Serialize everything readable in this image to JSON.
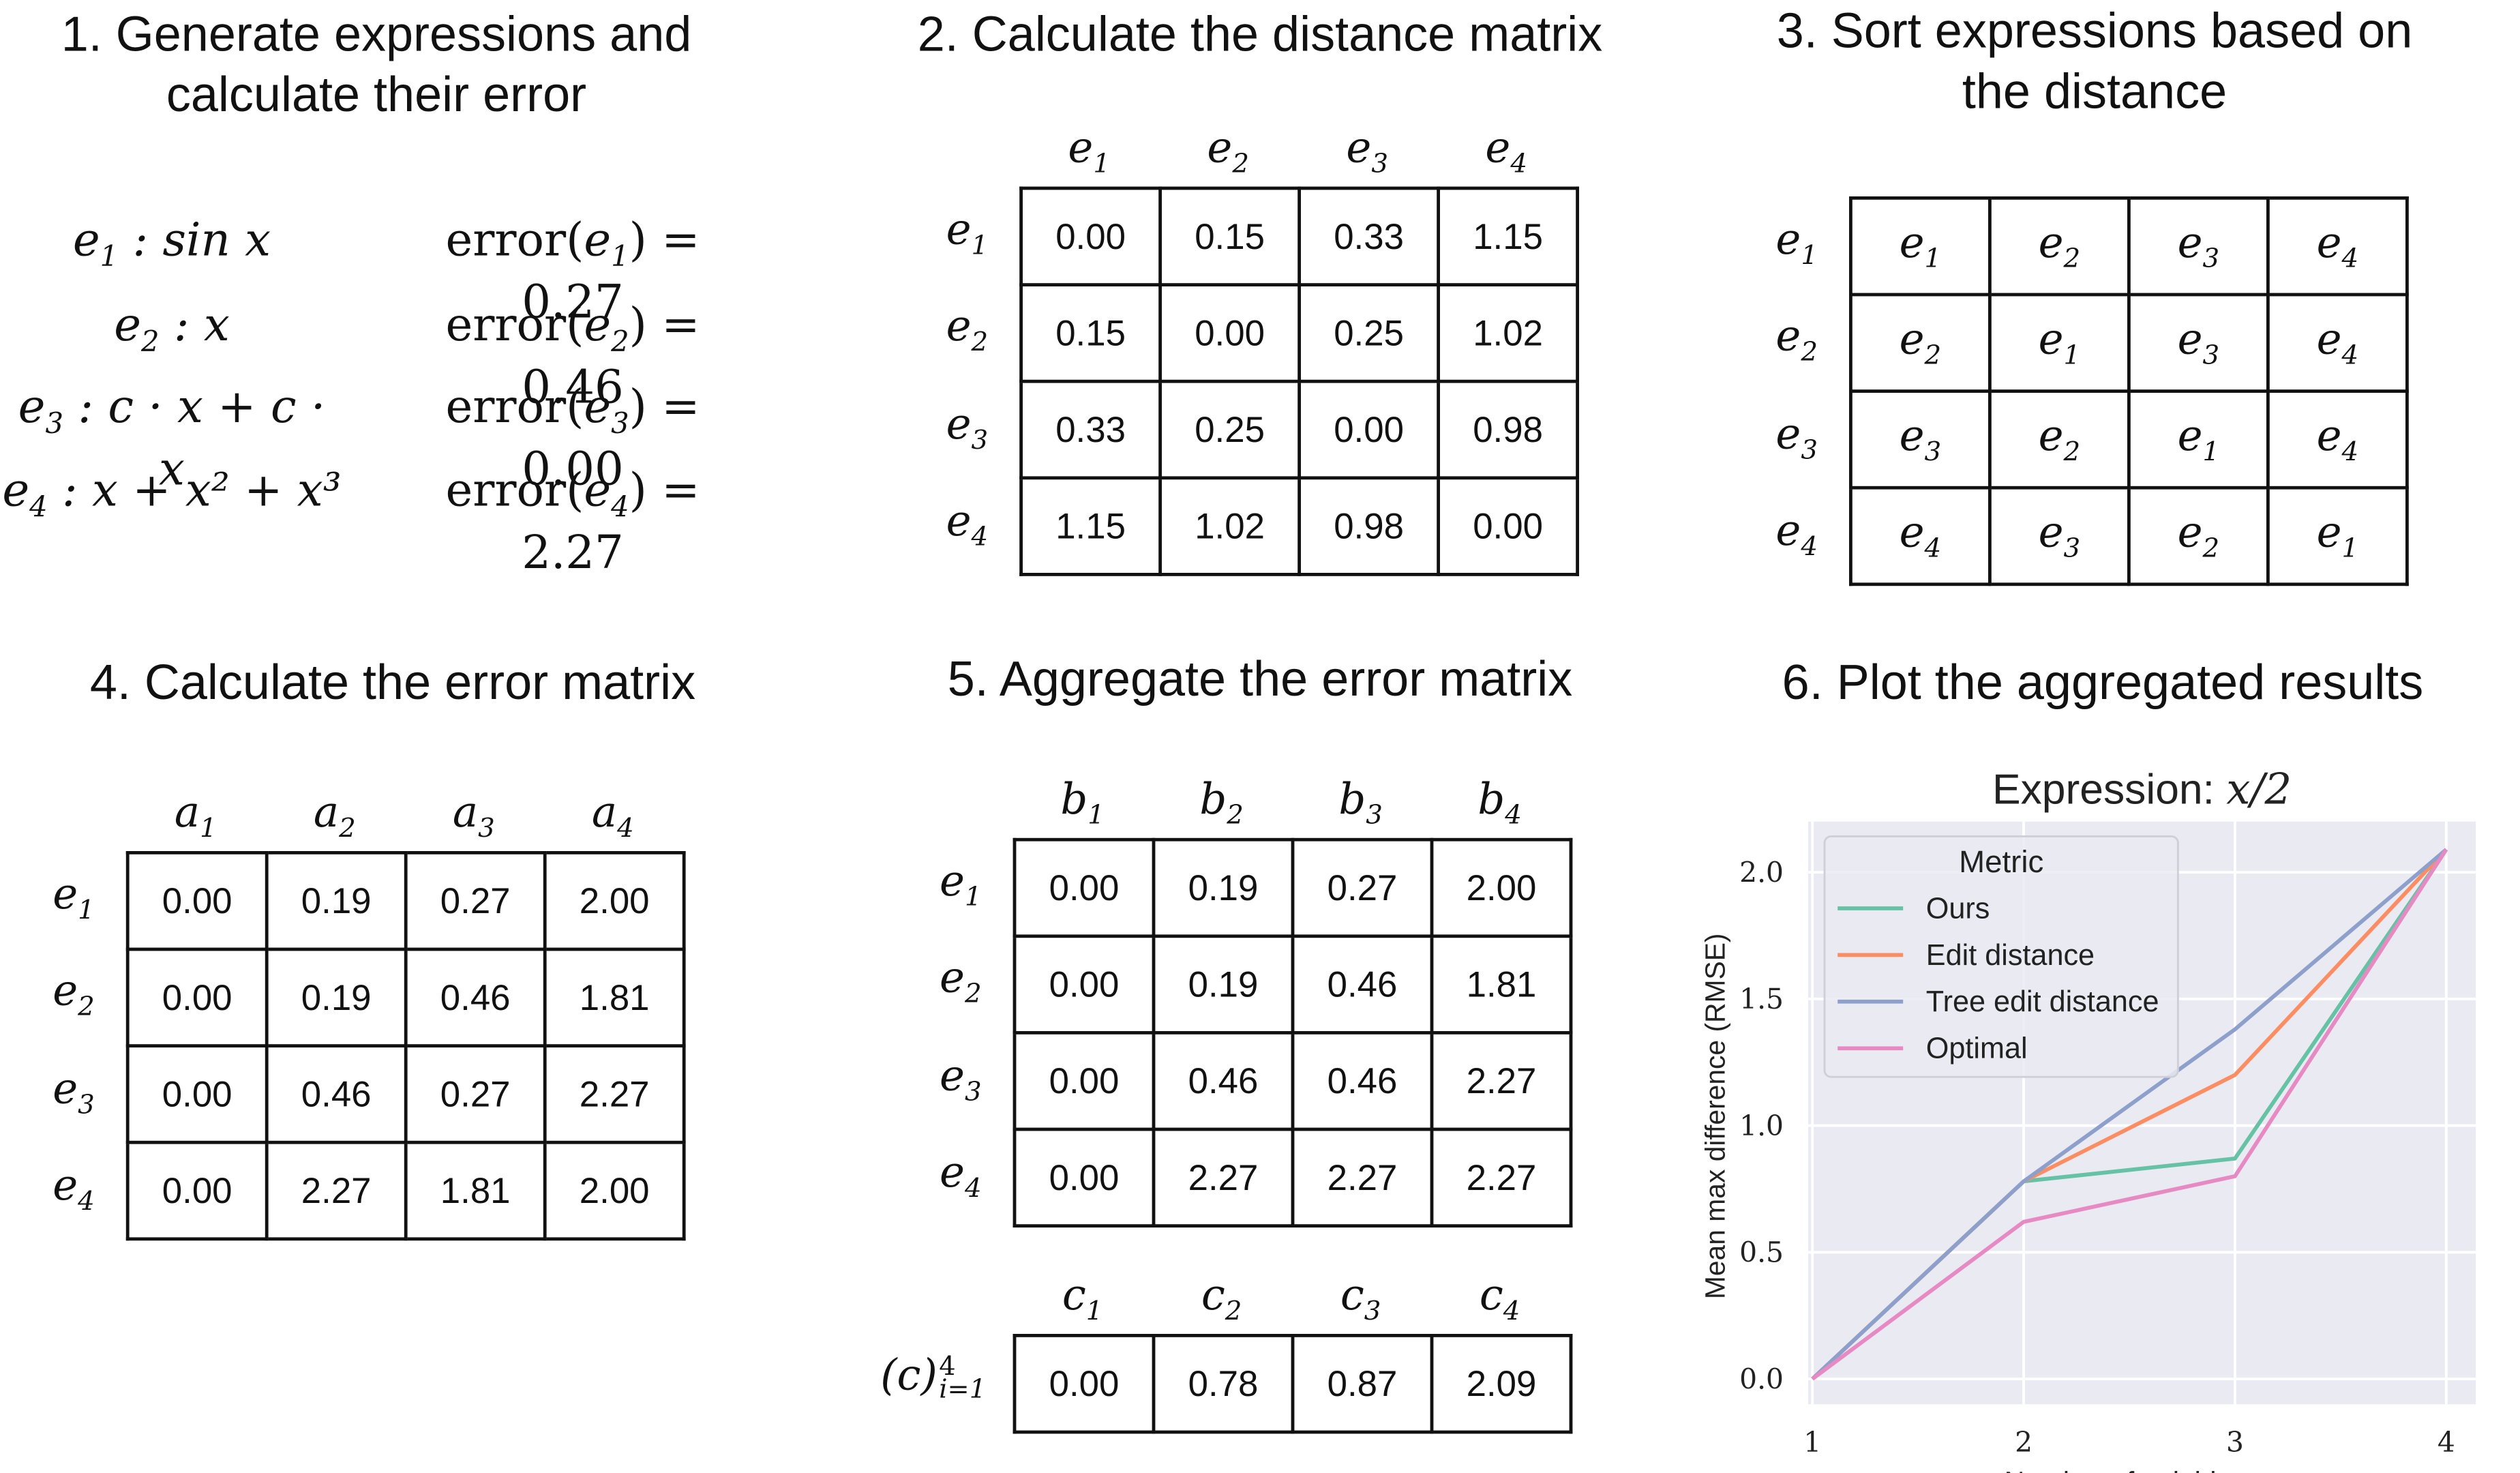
{
  "panel1": {
    "title": "1. Generate expressions and\ncalculate their error",
    "expressions": [
      {
        "name": "e",
        "idx": "1",
        "expr": "sin x",
        "error": "0.27"
      },
      {
        "name": "e",
        "idx": "2",
        "expr": "x",
        "error": "0.46"
      },
      {
        "name": "e",
        "idx": "3",
        "expr": "c · x + c · x",
        "error": "0.00"
      },
      {
        "name": "e",
        "idx": "4",
        "expr": "x + x² + x³",
        "error": "2.27"
      }
    ],
    "error_word": "error"
  },
  "panel2": {
    "title": "2. Calculate the distance matrix",
    "col_labels": [
      "e1",
      "e2",
      "e3",
      "e4"
    ],
    "row_labels": [
      "e1",
      "e2",
      "e3",
      "e4"
    ],
    "rows": [
      [
        "0.00",
        "0.15",
        "0.33",
        "1.15"
      ],
      [
        "0.15",
        "0.00",
        "0.25",
        "1.02"
      ],
      [
        "0.33",
        "0.25",
        "0.00",
        "0.98"
      ],
      [
        "1.15",
        "1.02",
        "0.98",
        "0.00"
      ]
    ]
  },
  "panel3": {
    "title": "3. Sort expressions based on\nthe distance",
    "row_labels": [
      "e1",
      "e2",
      "e3",
      "e4"
    ],
    "rows": [
      [
        "e1",
        "e2",
        "e3",
        "e4"
      ],
      [
        "e2",
        "e1",
        "e3",
        "e4"
      ],
      [
        "e3",
        "e2",
        "e1",
        "e4"
      ],
      [
        "e4",
        "e3",
        "e2",
        "e1"
      ]
    ]
  },
  "panel4": {
    "title": "4. Calculate the error matrix",
    "col_labels": [
      "a1",
      "a2",
      "a3",
      "a4"
    ],
    "row_labels": [
      "e1",
      "e2",
      "e3",
      "e4"
    ],
    "rows": [
      [
        "0.00",
        "0.19",
        "0.27",
        "2.00"
      ],
      [
        "0.00",
        "0.19",
        "0.46",
        "1.81"
      ],
      [
        "0.00",
        "0.46",
        "0.27",
        "2.27"
      ],
      [
        "0.00",
        "2.27",
        "1.81",
        "2.00"
      ]
    ]
  },
  "panel5": {
    "title": "5. Aggregate the error matrix",
    "col_labels": [
      "b1",
      "b2",
      "b3",
      "b4"
    ],
    "row_labels": [
      "e1",
      "e2",
      "e3",
      "e4"
    ],
    "rows": [
      [
        "0.00",
        "0.19",
        "0.27",
        "2.00"
      ],
      [
        "0.00",
        "0.19",
        "0.46",
        "1.81"
      ],
      [
        "0.00",
        "0.46",
        "0.46",
        "2.27"
      ],
      [
        "0.00",
        "2.27",
        "2.27",
        "2.27"
      ]
    ],
    "agg_col_labels": [
      "c1",
      "c2",
      "c3",
      "c4"
    ],
    "agg_row_label": "(c)",
    "agg_row_sup": "4",
    "agg_row_sub": "i=1",
    "agg_values": [
      "0.00",
      "0.78",
      "0.87",
      "2.09"
    ]
  },
  "panel6": {
    "title": "6. Plot the aggregated results"
  },
  "chart_data": {
    "type": "line",
    "title_prefix": "Expression:",
    "title_math": "x/2",
    "xlabel": "Number of neighbours",
    "ylabel": "Mean max difference (RMSE)",
    "x": [
      1,
      2,
      3,
      4
    ],
    "xlim": [
      0.98,
      4.14
    ],
    "ylim": [
      -0.1,
      2.2
    ],
    "xticks": [
      "1",
      "2",
      "3",
      "4"
    ],
    "yticks": [
      "0.0",
      "0.5",
      "1.0",
      "1.5",
      "2.0"
    ],
    "ytick_values": [
      0.0,
      0.5,
      1.0,
      1.5,
      2.0
    ],
    "grid": true,
    "background": "#eaeaf2",
    "legend_title": "Metric",
    "legend_position": "top-left",
    "series": [
      {
        "name": "Ours",
        "color": "#66c2a5",
        "values": [
          0.0,
          0.78,
          0.87,
          2.09
        ]
      },
      {
        "name": "Edit distance",
        "color": "#fc8d62",
        "values": [
          0.0,
          0.78,
          1.2,
          2.09
        ]
      },
      {
        "name": "Tree edit distance",
        "color": "#8da0cb",
        "values": [
          0.0,
          0.78,
          1.38,
          2.09
        ]
      },
      {
        "name": "Optimal",
        "color": "#e78ac3",
        "values": [
          0.0,
          0.62,
          0.8,
          2.09
        ]
      }
    ]
  }
}
